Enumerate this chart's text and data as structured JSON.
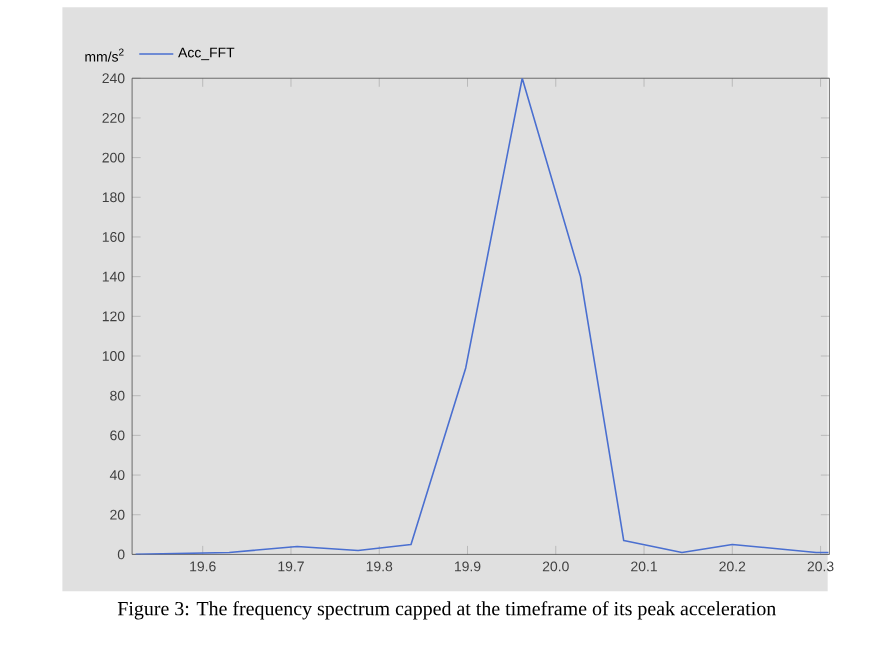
{
  "chart_data": {
    "type": "line",
    "ylabel": "mm/s$^{2}$",
    "legend": "top left",
    "x": [
      19.524,
      19.63,
      19.707,
      19.776,
      19.836,
      19.898,
      19.962,
      20.028,
      20.077,
      20.143,
      20.2,
      20.295,
      20.309
    ],
    "series": [
      {
        "name": "Acc_FFT",
        "color": "#4a6fd0",
        "values": [
          0,
          1,
          4,
          2,
          5,
          94,
          240,
          140,
          7,
          1,
          5,
          1,
          1
        ]
      }
    ],
    "xlim": [
      19.52,
      20.31
    ],
    "ylim": [
      0,
      240
    ],
    "xticks": [
      19.6,
      19.7,
      19.8,
      19.9,
      {
        "value": 20.0,
        "label": "20.0"
      },
      20.1,
      20.2,
      20.3
    ],
    "yticks": [
      0,
      20,
      40,
      60,
      80,
      100,
      120,
      140,
      160,
      180,
      200,
      220,
      240
    ],
    "grid": false,
    "marker": "none",
    "line_style": "solid",
    "annotations": [
      "Figure 3: The frequency spectrum capped at the timeframe of its peak acceleration"
    ]
  }
}
